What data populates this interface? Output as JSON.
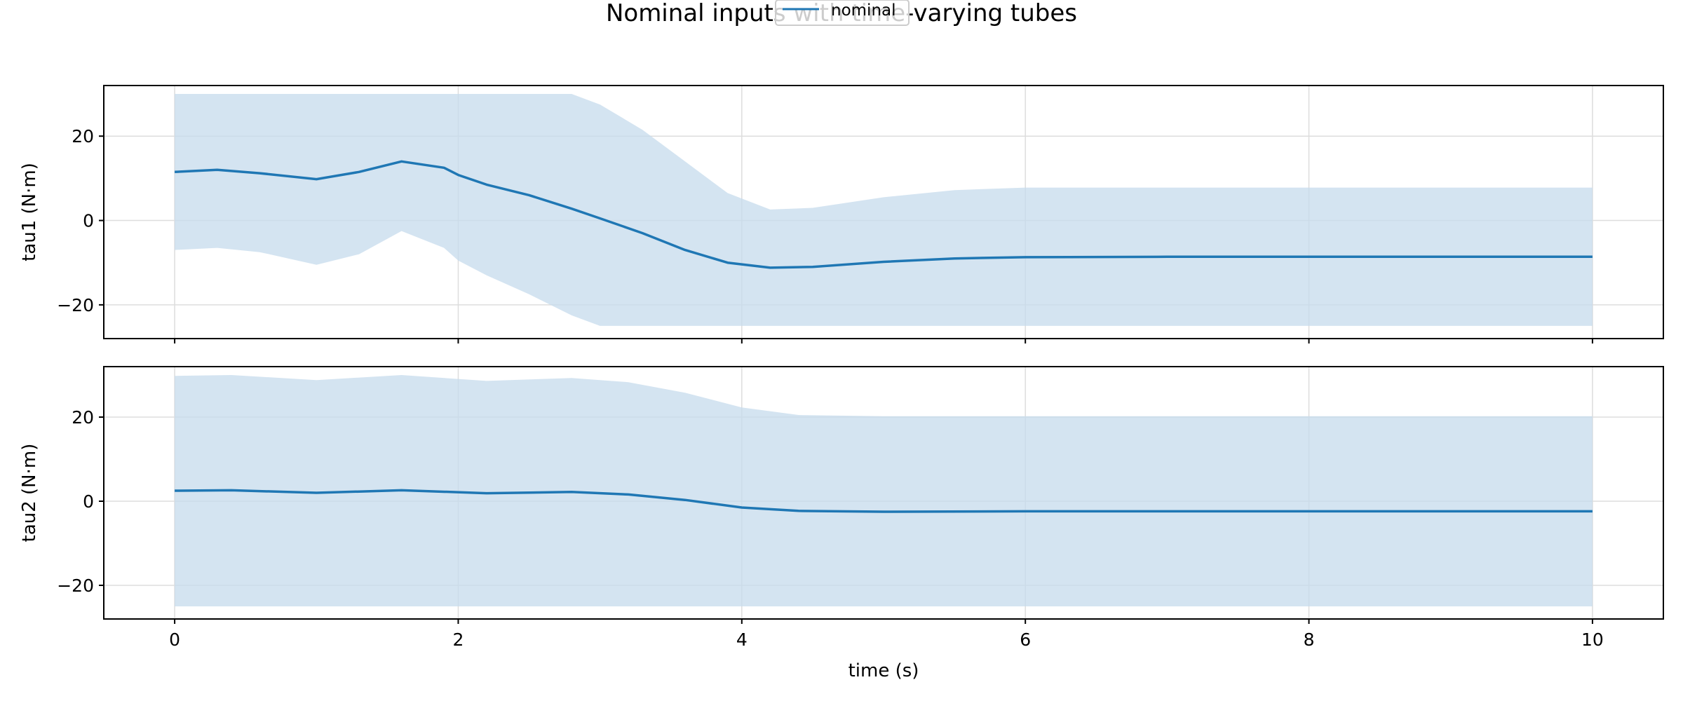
{
  "chart_data": {
    "type": "line",
    "title": "Nominal inputs with time-varying tubes",
    "xlabel": "time (s)",
    "xlim": [
      -0.5,
      10.5
    ],
    "x_ticks": [
      0,
      2,
      4,
      6,
      8,
      10
    ],
    "grid": true,
    "legend": {
      "entries": [
        "nominal"
      ],
      "placement": "top-center"
    },
    "colors": {
      "line": "#1f77b4",
      "band": "#c6dbec",
      "grid": "#dddddd"
    },
    "panels": [
      {
        "ylabel": "tau1 (N·m)",
        "ylim": [
          -28,
          32
        ],
        "y_ticks": [
          20,
          0,
          -20
        ],
        "y_tick_labels": [
          "20",
          "0",
          "−20"
        ],
        "series": [
          {
            "name": "nominal",
            "x": [
              0,
              0.3,
              0.6,
              1.0,
              1.3,
              1.6,
              1.9,
              2.0,
              2.2,
              2.5,
              2.8,
              3.0,
              3.3,
              3.6,
              3.9,
              4.2,
              4.5,
              5.0,
              5.5,
              6.0,
              7.0,
              8.0,
              9.0,
              10.0
            ],
            "y": [
              11.5,
              12.0,
              11.2,
              9.8,
              11.5,
              14.0,
              12.5,
              10.8,
              8.5,
              6.0,
              2.8,
              0.5,
              -3.0,
              -7.0,
              -10.0,
              -11.2,
              -11.0,
              -9.8,
              -9.0,
              -8.7,
              -8.6,
              -8.6,
              -8.6,
              -8.6
            ]
          }
        ],
        "tube": {
          "x": [
            0,
            0.3,
            0.6,
            1.0,
            1.3,
            1.6,
            1.9,
            2.0,
            2.2,
            2.5,
            2.8,
            3.0,
            3.3,
            3.6,
            3.9,
            4.2,
            4.5,
            5.0,
            5.5,
            6.0,
            7.0,
            8.0,
            9.0,
            10.0
          ],
          "upper": [
            30,
            30,
            30,
            30,
            30,
            30,
            30,
            30,
            30,
            30,
            30,
            27.5,
            21.5,
            14.0,
            6.5,
            2.6,
            3.0,
            5.5,
            7.2,
            7.8,
            7.8,
            7.8,
            7.8,
            7.8
          ],
          "lower": [
            -7.0,
            -6.5,
            -7.5,
            -10.5,
            -8.0,
            -2.5,
            -6.5,
            -9.5,
            -13.0,
            -17.5,
            -22.5,
            -25,
            -25,
            -25,
            -25,
            -25,
            -25,
            -25,
            -25,
            -25,
            -25,
            -25,
            -25,
            -25
          ]
        }
      },
      {
        "ylabel": "tau2 (N·m)",
        "ylim": [
          -28,
          32
        ],
        "y_ticks": [
          20,
          0,
          -20
        ],
        "y_tick_labels": [
          "20",
          "0",
          "−20"
        ],
        "series": [
          {
            "name": "nominal",
            "x": [
              0,
              0.4,
              1.0,
              1.6,
              2.2,
              2.8,
              3.2,
              3.6,
              4.0,
              4.4,
              5.0,
              6.0,
              8.0,
              10.0
            ],
            "y": [
              2.5,
              2.6,
              2.0,
              2.6,
              1.9,
              2.2,
              1.6,
              0.3,
              -1.5,
              -2.3,
              -2.5,
              -2.4,
              -2.4,
              -2.4
            ]
          }
        ],
        "tube": {
          "x": [
            0,
            0.4,
            1.0,
            1.6,
            2.2,
            2.8,
            3.2,
            3.6,
            4.0,
            4.4,
            5.0,
            6.0,
            8.0,
            10.0
          ],
          "upper": [
            29.8,
            30.0,
            28.8,
            30.0,
            28.6,
            29.3,
            28.3,
            25.8,
            22.3,
            20.5,
            20.2,
            20.2,
            20.2,
            20.2
          ],
          "lower": [
            -25,
            -25,
            -25,
            -25,
            -25,
            -25,
            -25,
            -25,
            -25,
            -25,
            -25,
            -25,
            -25,
            -25
          ]
        }
      }
    ]
  }
}
